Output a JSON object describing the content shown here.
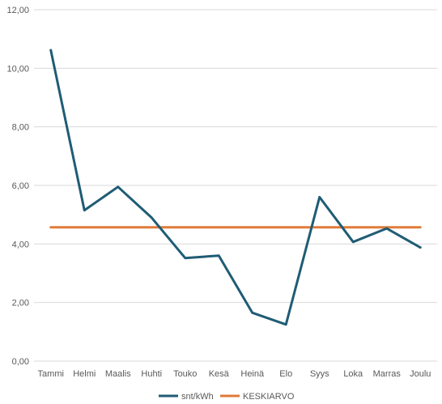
{
  "chart_data": {
    "type": "line",
    "title": "",
    "xlabel": "",
    "ylabel": "",
    "categories": [
      "Tammi",
      "Helmi",
      "Maalis",
      "Huhti",
      "Touko",
      "Kesä",
      "Heinä",
      "Elo",
      "Syys",
      "Loka",
      "Marras",
      "Joulu"
    ],
    "ylim": [
      0,
      12
    ],
    "yticks": [
      "0,00",
      "2,00",
      "4,00",
      "6,00",
      "8,00",
      "10,00",
      "12,00"
    ],
    "grid": true,
    "legend_position": "bottom",
    "series": [
      {
        "name": "snt/kWh",
        "color": "#1f5c75",
        "values": [
          10.62,
          5.15,
          5.95,
          4.9,
          3.52,
          3.6,
          1.65,
          1.25,
          5.6,
          4.07,
          4.53,
          3.88
        ]
      },
      {
        "name": "KESKIARVO",
        "color": "#e07b39",
        "values": [
          4.57,
          4.57,
          4.57,
          4.57,
          4.57,
          4.57,
          4.57,
          4.57,
          4.57,
          4.57,
          4.57,
          4.57
        ]
      }
    ]
  }
}
